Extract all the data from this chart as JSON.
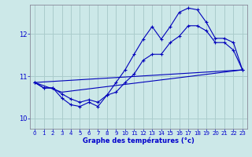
{
  "background_color": "#cce8e8",
  "grid_color": "#aacccc",
  "line_color": "#0000bb",
  "xlabel": "Graphe des températures (°c)",
  "xlabel_color": "#0000cc",
  "tick_color": "#0000cc",
  "axis_color": "#888899",
  "xlim": [
    -0.5,
    23.5
  ],
  "ylim": [
    9.75,
    12.7
  ],
  "yticks": [
    10,
    11,
    12
  ],
  "xticks": [
    0,
    1,
    2,
    3,
    4,
    5,
    6,
    7,
    8,
    9,
    10,
    11,
    12,
    13,
    14,
    15,
    16,
    17,
    18,
    19,
    20,
    21,
    22,
    23
  ],
  "series1_x": [
    0,
    1,
    2,
    3,
    4,
    5,
    6,
    7,
    8,
    9,
    10,
    11,
    12,
    13,
    14,
    15,
    16,
    17,
    18,
    19,
    20,
    21,
    22,
    23
  ],
  "series1_y": [
    10.85,
    10.72,
    10.72,
    10.58,
    10.46,
    10.38,
    10.44,
    10.38,
    10.55,
    10.62,
    10.85,
    11.05,
    11.38,
    11.52,
    11.52,
    11.8,
    11.95,
    12.2,
    12.2,
    12.08,
    11.8,
    11.8,
    11.62,
    11.15
  ],
  "series2_x": [
    0,
    1,
    2,
    3,
    4,
    5,
    6,
    7,
    8,
    9,
    10,
    11,
    12,
    13,
    14,
    15,
    16,
    17,
    18,
    19,
    20,
    21,
    22,
    23
  ],
  "series2_y": [
    10.85,
    10.72,
    10.72,
    10.48,
    10.32,
    10.28,
    10.38,
    10.28,
    10.55,
    10.85,
    11.15,
    11.52,
    11.88,
    12.18,
    11.88,
    12.18,
    12.52,
    12.62,
    12.58,
    12.28,
    11.9,
    11.9,
    11.8,
    11.15
  ],
  "series3_x": [
    0,
    23
  ],
  "series3_y": [
    10.85,
    11.15
  ],
  "series4_x": [
    0,
    3,
    23
  ],
  "series4_y": [
    10.85,
    10.62,
    11.15
  ]
}
